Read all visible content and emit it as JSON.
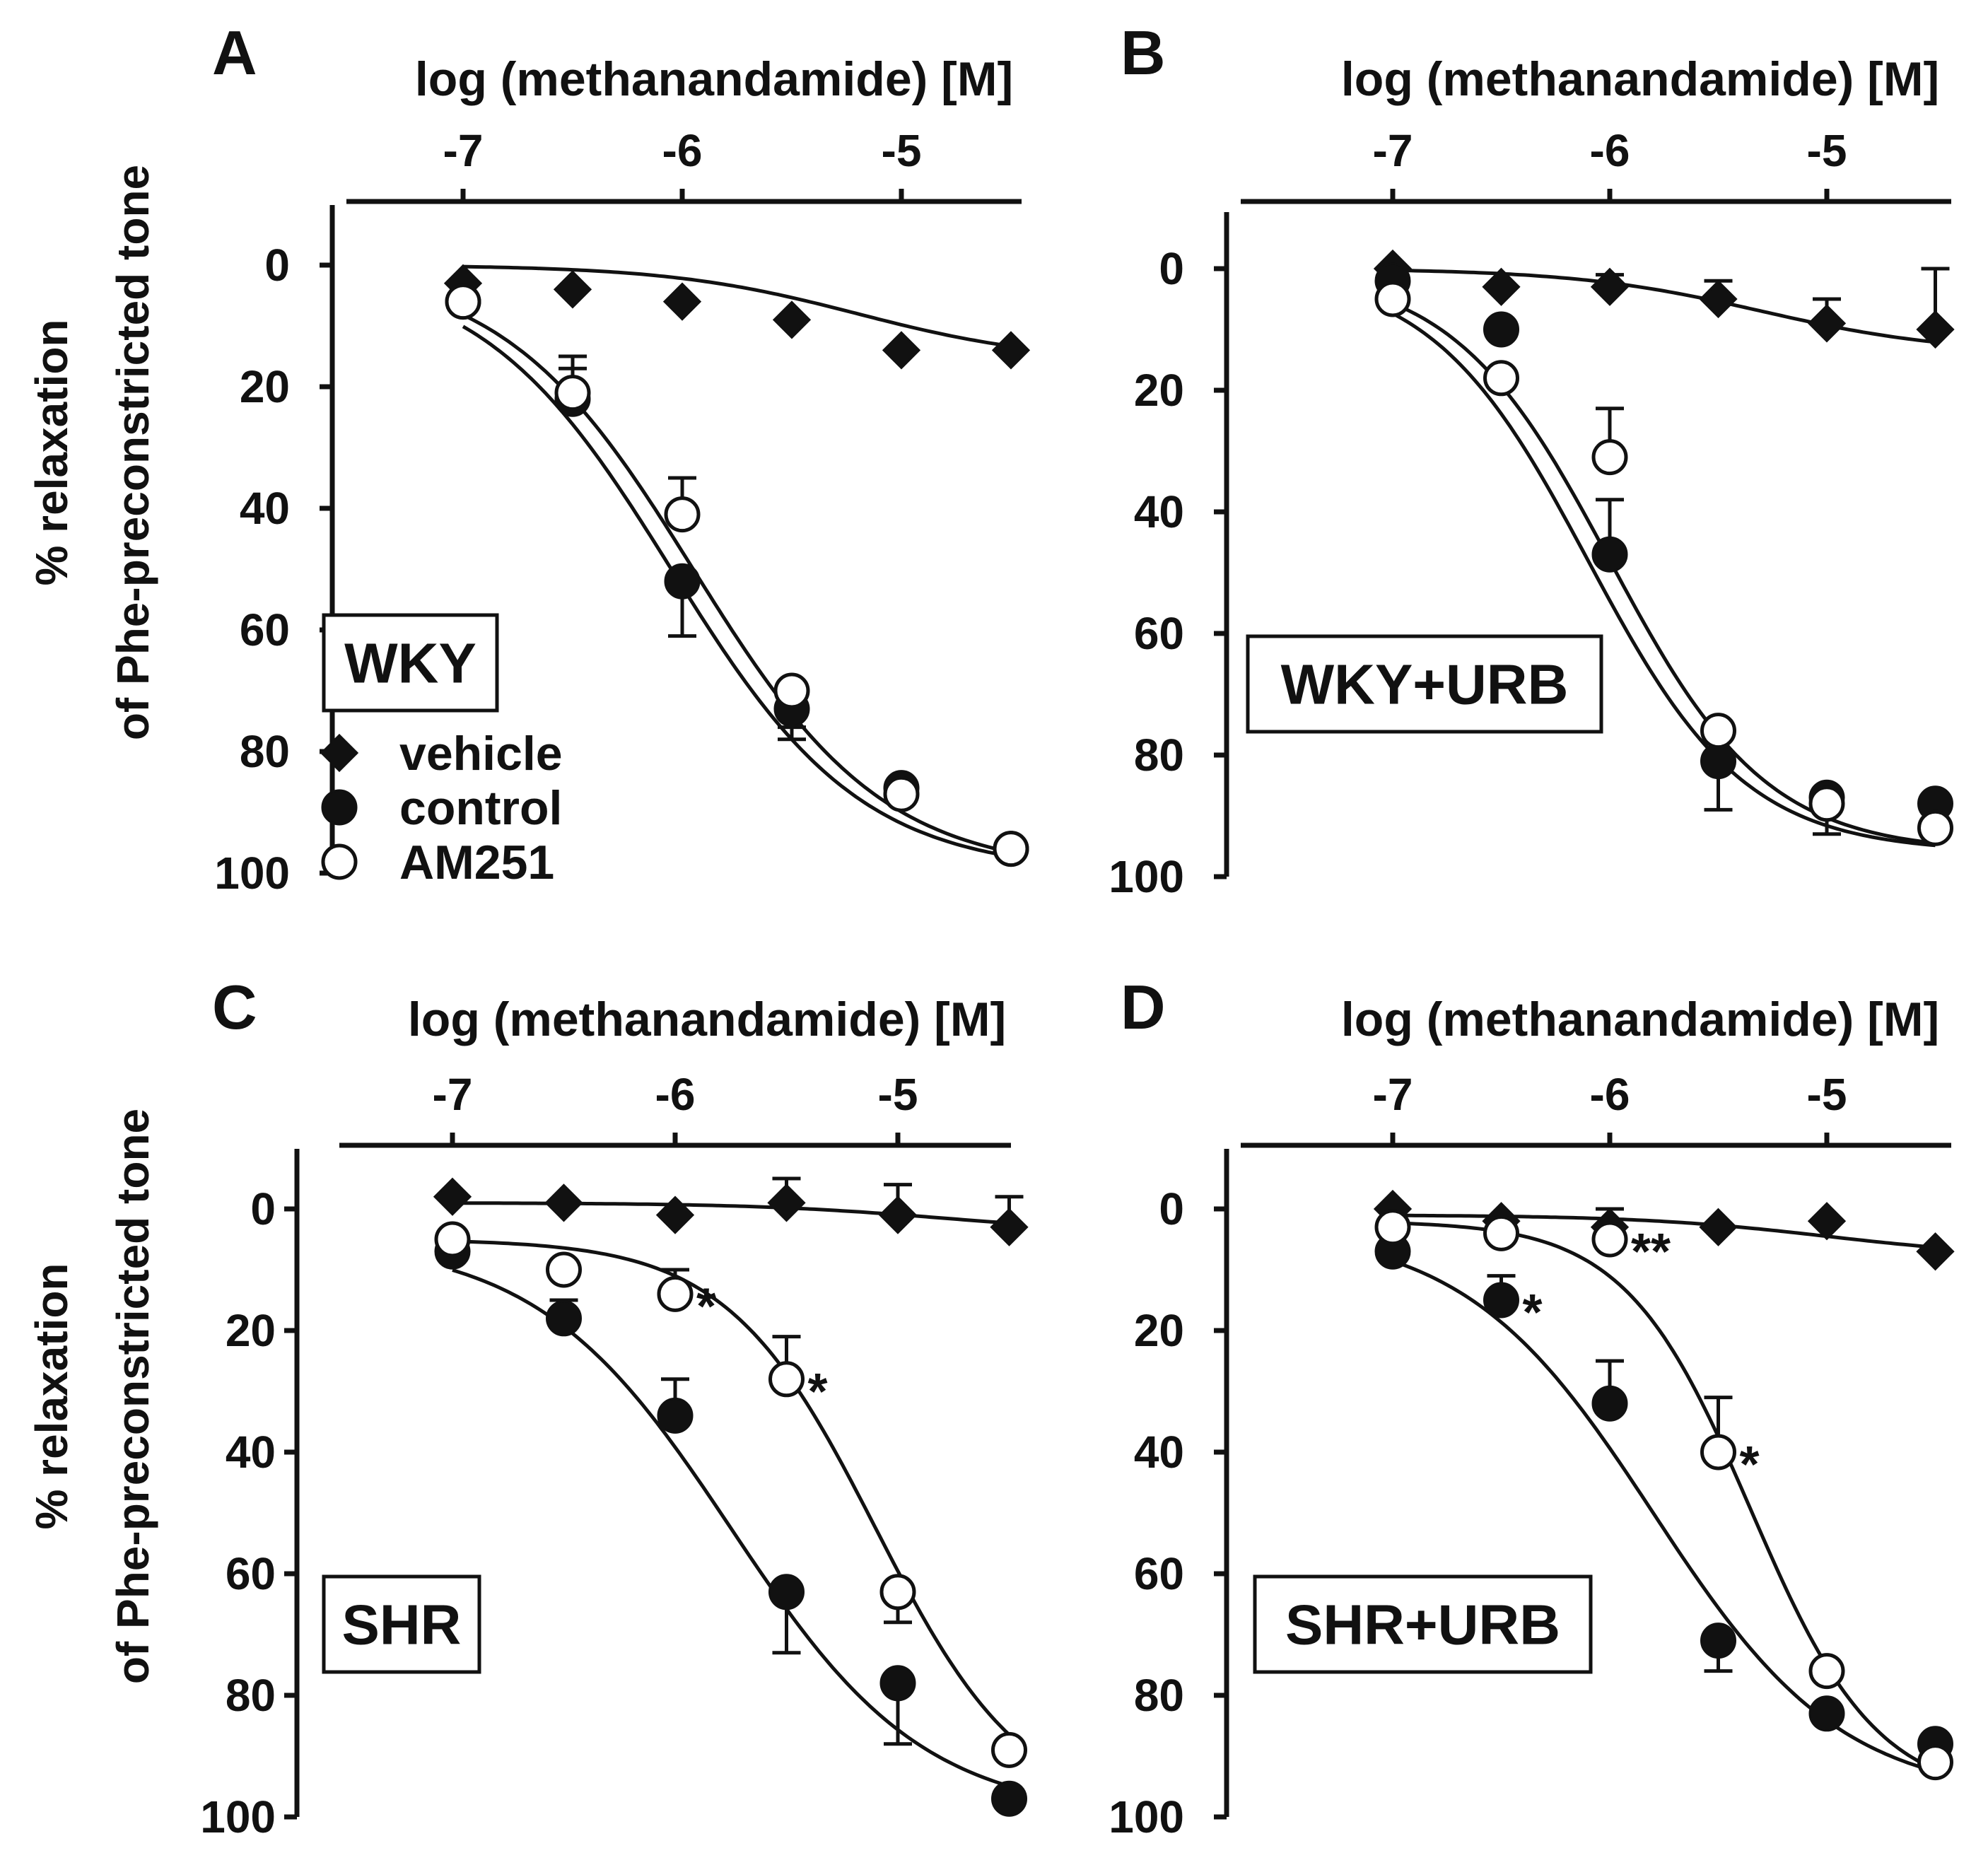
{
  "figure": {
    "ylabel_lines": [
      "% relaxation",
      "of Phe-preconstricted tone"
    ]
  },
  "legend": {
    "items": [
      {
        "label": "vehicle",
        "marker": "diamond-filled"
      },
      {
        "label": "control",
        "marker": "circle-filled"
      },
      {
        "label": "AM251",
        "marker": "circle-open"
      }
    ]
  },
  "chart_data": [
    {
      "panel": "A",
      "type": "line",
      "condition": "WKY",
      "xlabel": "log (methanandamide) [M]",
      "xlim": [
        -7.5,
        -4.5
      ],
      "xticks": [
        -7,
        -6,
        -5
      ],
      "xtick_labels": [
        "-7",
        "-6",
        "-5"
      ],
      "ylabel": "% relaxation of Phe-preconstricted tone",
      "ylim": [
        -10,
        100
      ],
      "yticks": [
        0,
        20,
        40,
        60,
        80,
        100
      ],
      "ytick_labels": [
        "0",
        "20",
        "40",
        "60",
        "80",
        "100"
      ],
      "x": [
        -7,
        -6.5,
        -6,
        -5.5,
        -5,
        -4.5
      ],
      "series": [
        {
          "name": "vehicle",
          "marker": "diamond-filled",
          "values": [
            3,
            4,
            6,
            9,
            14,
            14
          ],
          "errors": [
            0,
            0,
            0,
            0,
            0,
            0
          ],
          "fit": {
            "bottom": 0,
            "top": 16,
            "logec50": -5.2,
            "hill": 1.0
          }
        },
        {
          "name": "control",
          "marker": "circle-filled",
          "values": [
            6,
            22,
            52,
            73,
            86,
            96
          ],
          "errors": [
            0,
            7,
            9,
            5,
            0,
            0
          ],
          "fit": {
            "bottom": 0,
            "top": 100,
            "logec50": -6.05,
            "hill": 1.0
          }
        },
        {
          "name": "AM251",
          "marker": "circle-open",
          "values": [
            6,
            21,
            41,
            70,
            87,
            96
          ],
          "errors": [
            0,
            4,
            6,
            6,
            0,
            0
          ],
          "fit": {
            "bottom": 0,
            "top": 100,
            "logec50": -5.95,
            "hill": 1.0
          }
        }
      ],
      "annotations": []
    },
    {
      "panel": "B",
      "type": "line",
      "condition": "WKY+URB",
      "xlabel": "log (methanandamide) [M]",
      "xlim": [
        -7.5,
        -4.5
      ],
      "xticks": [
        -7,
        -6,
        -5
      ],
      "xtick_labels": [
        "-7",
        "-6",
        "-5"
      ],
      "ylabel": "% relaxation of Phe-preconstricted tone",
      "ylim": [
        -10,
        100
      ],
      "yticks": [
        0,
        20,
        40,
        60,
        80,
        100
      ],
      "ytick_labels": [
        "0",
        "20",
        "40",
        "60",
        "80",
        "100"
      ],
      "x": [
        -7,
        -6.5,
        -6,
        -5.5,
        -5,
        -4.5
      ],
      "series": [
        {
          "name": "vehicle",
          "marker": "diamond-filled",
          "values": [
            0,
            3,
            3,
            5,
            9,
            10
          ],
          "errors": [
            0,
            0,
            2,
            3,
            4,
            10
          ],
          "fit": {
            "bottom": 0,
            "top": 14,
            "logec50": -5.3,
            "hill": 1.0
          }
        },
        {
          "name": "control",
          "marker": "circle-filled",
          "values": [
            2,
            10,
            47,
            81,
            87,
            88
          ],
          "errors": [
            0,
            0,
            9,
            8,
            0,
            0
          ],
          "fit": {
            "bottom": 0,
            "top": 96,
            "logec50": -6.1,
            "hill": 1.2
          }
        },
        {
          "name": "AM251",
          "marker": "circle-open",
          "values": [
            5,
            18,
            31,
            76,
            88,
            92
          ],
          "errors": [
            0,
            0,
            8,
            6,
            5,
            0
          ],
          "fit": {
            "bottom": 0,
            "top": 96,
            "logec50": -6.0,
            "hill": 1.2
          }
        }
      ],
      "annotations": []
    },
    {
      "panel": "C",
      "type": "line",
      "condition": "SHR",
      "xlabel": "log (methanandamide) [M]",
      "xlim": [
        -7.5,
        -4.5
      ],
      "xticks": [
        -7,
        -6,
        -5
      ],
      "xtick_labels": [
        "-7",
        "-6",
        "-5"
      ],
      "ylabel": "% relaxation of Phe-preconstricted tone",
      "ylim": [
        -10,
        100
      ],
      "yticks": [
        0,
        20,
        40,
        60,
        80,
        100
      ],
      "ytick_labels": [
        "0",
        "20",
        "40",
        "60",
        "80",
        "100"
      ],
      "x": [
        -7,
        -6.5,
        -6,
        -5.5,
        -5,
        -4.5
      ],
      "series": [
        {
          "name": "vehicle",
          "marker": "diamond-filled",
          "values": [
            -2,
            -1,
            1,
            -1,
            1,
            3
          ],
          "errors": [
            0,
            0,
            0,
            4,
            5,
            5
          ],
          "fit": {
            "bottom": -1,
            "top": 4,
            "logec50": -4.8,
            "hill": 1.0
          }
        },
        {
          "name": "control",
          "marker": "circle-filled",
          "values": [
            7,
            18,
            34,
            63,
            78,
            97
          ],
          "errors": [
            0,
            3,
            6,
            10,
            10,
            0
          ],
          "fit": {
            "bottom": 5,
            "top": 100,
            "logec50": -5.75,
            "hill": 1.0
          }
        },
        {
          "name": "AM251",
          "marker": "circle-open",
          "values": [
            5,
            10,
            14,
            28,
            63,
            89
          ],
          "errors": [
            0,
            0,
            4,
            7,
            5,
            0
          ],
          "fit": {
            "bottom": 5,
            "top": 100,
            "logec50": -5.1,
            "hill": 1.3
          }
        }
      ],
      "annotations": [
        {
          "text": "*",
          "x": -6,
          "y": 14,
          "series": "AM251"
        },
        {
          "text": "*",
          "x": -5.5,
          "y": 28,
          "series": "AM251"
        }
      ]
    },
    {
      "panel": "D",
      "type": "line",
      "condition": "SHR+URB",
      "xlabel": "log (methanandamide) [M]",
      "xlim": [
        -7.5,
        -4.5
      ],
      "xticks": [
        -7,
        -6,
        -5
      ],
      "xtick_labels": [
        "-7",
        "-6",
        "-5"
      ],
      "ylabel": "% relaxation of Phe-preconstricted tone",
      "ylim": [
        -10,
        100
      ],
      "yticks": [
        0,
        20,
        40,
        60,
        80,
        100
      ],
      "ytick_labels": [
        "0",
        "20",
        "40",
        "60",
        "80",
        "100"
      ],
      "x": [
        -7,
        -6.5,
        -6,
        -5.5,
        -5,
        -4.5
      ],
      "series": [
        {
          "name": "vehicle",
          "marker": "diamond-filled",
          "values": [
            0,
            2,
            3,
            3,
            2,
            7
          ],
          "errors": [
            0,
            0,
            0,
            0,
            0,
            0
          ],
          "fit": {
            "bottom": 1,
            "top": 8,
            "logec50": -5.0,
            "hill": 1.0
          }
        },
        {
          "name": "control",
          "marker": "circle-filled",
          "values": [
            7,
            15,
            32,
            71,
            83,
            88
          ],
          "errors": [
            0,
            4,
            7,
            5,
            0,
            4
          ],
          "fit": {
            "bottom": 3,
            "top": 97,
            "logec50": -5.8,
            "hill": 1.0
          }
        },
        {
          "name": "AM251",
          "marker": "circle-open",
          "values": [
            3,
            4,
            5,
            40,
            76,
            91
          ],
          "errors": [
            0,
            0,
            5,
            9,
            0,
            0
          ],
          "fit": {
            "bottom": 2,
            "top": 97,
            "logec50": -5.35,
            "hill": 1.5
          }
        }
      ],
      "annotations": [
        {
          "text": "*",
          "x": -6.5,
          "y": 15,
          "series": "control"
        },
        {
          "text": "**",
          "x": -6,
          "y": 5,
          "series": "AM251"
        },
        {
          "text": "*",
          "x": -5.5,
          "y": 40,
          "series": "AM251"
        }
      ]
    }
  ]
}
